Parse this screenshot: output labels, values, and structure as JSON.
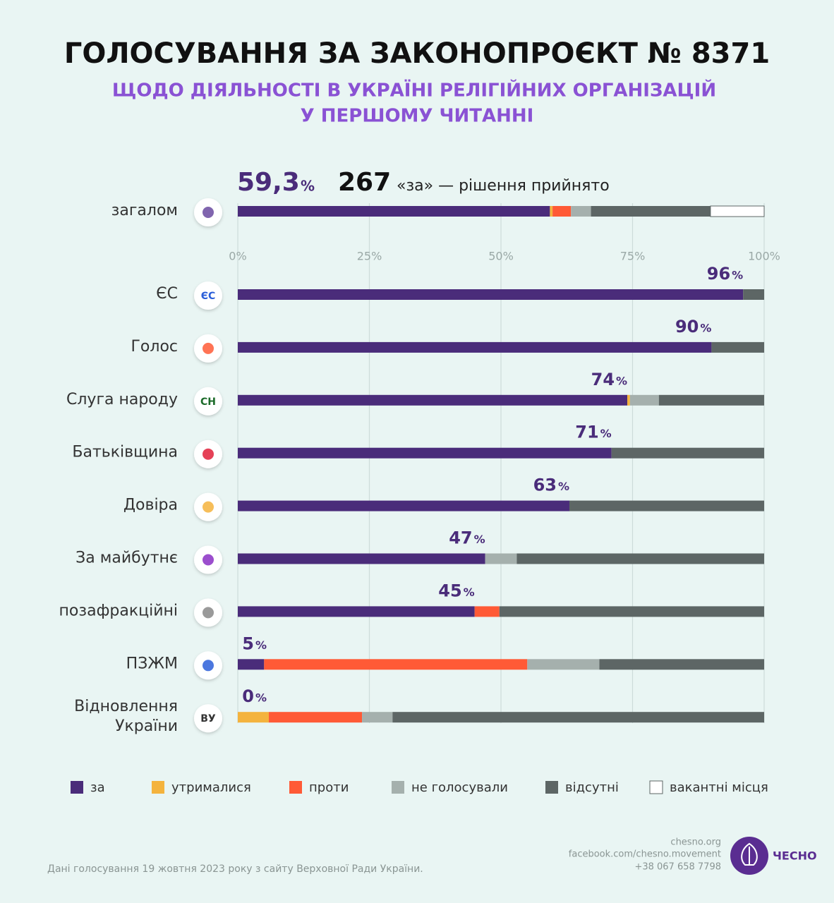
{
  "chart_data": {
    "type": "stacked-bar",
    "orientation": "horizontal",
    "title": "ГОЛОСУВАННЯ ЗА ЗАКОНОПРОЄКТ № 8371",
    "subtitle": [
      "ЩОДО ДІЯЛЬНОСТІ В УКРАЇНІ РЕЛІГІЙНИХ ОРГАНІЗАЦІЙ",
      "У ПЕРШОМУ ЧИТАННІ"
    ],
    "categories": [
      "загалом",
      "ЄС",
      "Голос",
      "Слуга народу",
      "Батьківщина",
      "Довіра",
      "За майбутнє",
      "позафракційні",
      "ПЗЖМ",
      "Відновлення України"
    ],
    "unit_label": "%",
    "annotation": {
      "count": 267,
      "text": "«за» — рішення прийнято"
    },
    "series": [
      {
        "name": "за",
        "color": "#4a2c7a",
        "values": [
          59.3,
          96,
          90,
          74,
          71,
          63,
          47,
          45,
          5,
          0
        ],
        "value_labels": [
          "59,3",
          "96",
          "90",
          "74",
          "71",
          "63",
          "47",
          "45",
          "5",
          "0"
        ]
      },
      {
        "name": "утрималися",
        "color": "#f4b33d",
        "values": [
          0.5,
          null,
          null,
          0.5,
          null,
          null,
          null,
          null,
          null,
          5.9
        ]
      },
      {
        "name": "проти",
        "color": "#ff5a36",
        "values": [
          3.5,
          null,
          null,
          null,
          null,
          null,
          null,
          4.7,
          50,
          17.7
        ]
      },
      {
        "name": "не голосували",
        "color": "#a5b0ad",
        "values": [
          3.8,
          null,
          null,
          5.5,
          null,
          null,
          6,
          null,
          13.7,
          5.8
        ]
      },
      {
        "name": "відсутні",
        "color": "#5d6665",
        "values": [
          22.7,
          4,
          10,
          20,
          29,
          37,
          47,
          50.3,
          31.3,
          70.6
        ]
      },
      {
        "name": "вакантні місця",
        "color": "#ffffff",
        "values": [
          10.2,
          null,
          null,
          null,
          null,
          null,
          null,
          null,
          null,
          null
        ]
      }
    ],
    "xlim": [
      0,
      100
    ],
    "xticks": [
      {
        "value": 0,
        "label": "0%"
      },
      {
        "value": 25,
        "label": "25%"
      },
      {
        "value": 50,
        "label": "50%"
      },
      {
        "value": 75,
        "label": "75%"
      },
      {
        "value": 100,
        "label": "100%"
      }
    ],
    "grid": true
  },
  "icons": {
    "es": "ЄС",
    "sn": "СН",
    "vu": "ВУ"
  },
  "footer": {
    "source": "Дані голосування 19 жовтня 2023 року з сайту Верховної Ради України.",
    "contacts": [
      "chesno.org",
      "facebook.com/chesno.movement",
      "+38 067 658 7798"
    ],
    "brand": "ЧЕСНО"
  }
}
